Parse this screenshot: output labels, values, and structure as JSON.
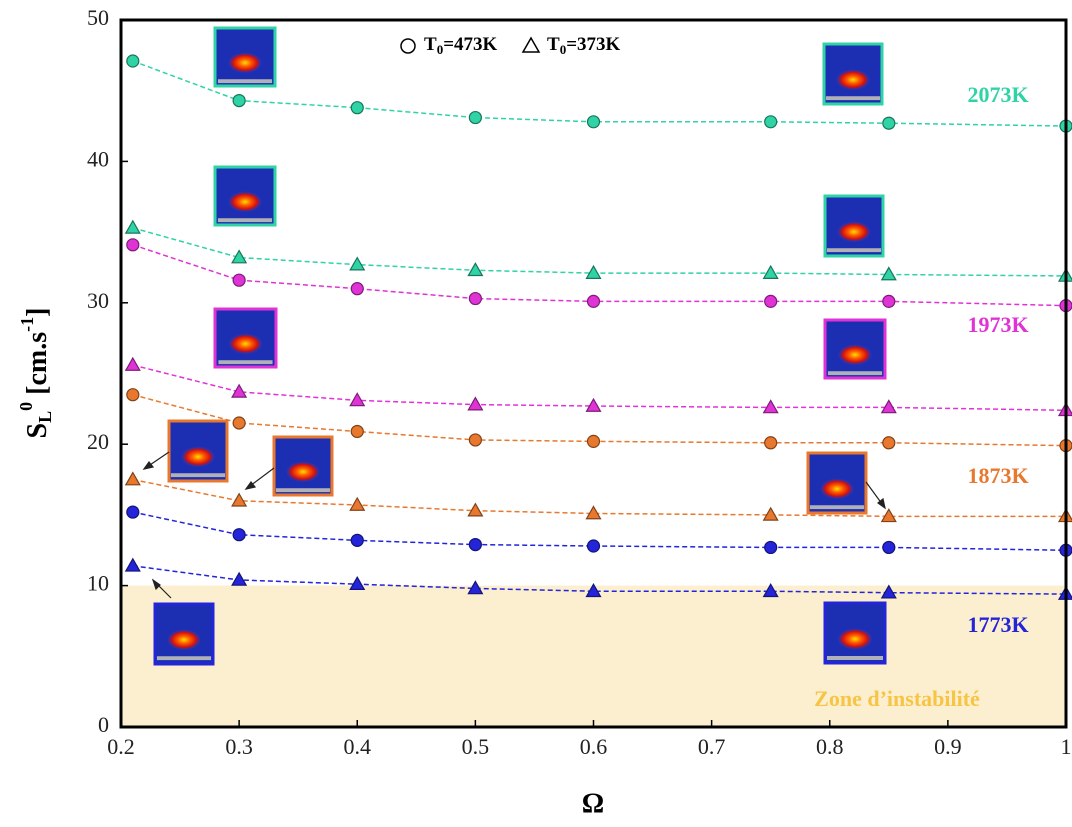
{
  "chart_data": {
    "type": "line",
    "x_label": "Ω",
    "y_label": [
      "S",
      "L",
      "0",
      " [cm.s",
      "-1",
      "]"
    ],
    "x": [
      0.21,
      0.3,
      0.4,
      0.5,
      0.6,
      0.75,
      0.85,
      1
    ],
    "xlim": [
      0.2,
      1
    ],
    "xticks": [
      0.2,
      0.3,
      0.4,
      0.5,
      0.6,
      0.7,
      0.8,
      0.9,
      1
    ],
    "ylim": [
      0,
      50
    ],
    "yticks": [
      0,
      10,
      20,
      30,
      40,
      50
    ],
    "legend": [
      {
        "marker": "circle",
        "label": [
          "T",
          "0",
          "=473K"
        ]
      },
      {
        "marker": "triangle",
        "label": [
          "T",
          "0",
          "=373K"
        ]
      }
    ],
    "groups": [
      {
        "label": "2073K",
        "color": "#2fd3a5",
        "series": [
          {
            "marker": "circle",
            "values": [
              47.1,
              44.3,
              43.8,
              43.1,
              42.8,
              42.8,
              42.7,
              42.5
            ]
          },
          {
            "marker": "triangle",
            "values": [
              35.3,
              33.2,
              32.7,
              32.3,
              32.1,
              32.1,
              32.0,
              31.9
            ]
          }
        ]
      },
      {
        "label": "1973K",
        "color": "#e033d6",
        "series": [
          {
            "marker": "circle",
            "values": [
              34.1,
              31.6,
              31.0,
              30.3,
              30.1,
              30.1,
              30.1,
              29.8
            ]
          },
          {
            "marker": "triangle",
            "values": [
              25.6,
              23.7,
              23.1,
              22.8,
              22.7,
              22.6,
              22.6,
              22.4
            ]
          }
        ]
      },
      {
        "label": "1873K",
        "color": "#e8782e",
        "series": [
          {
            "marker": "circle",
            "values": [
              23.5,
              21.5,
              20.9,
              20.3,
              20.2,
              20.1,
              20.1,
              19.9
            ]
          },
          {
            "marker": "triangle",
            "values": [
              17.5,
              16.0,
              15.7,
              15.3,
              15.1,
              15.0,
              14.9,
              14.9
            ]
          }
        ]
      },
      {
        "label": "1773K",
        "color": "#2424d8",
        "series": [
          {
            "marker": "circle",
            "values": [
              15.2,
              13.6,
              13.2,
              12.9,
              12.8,
              12.7,
              12.7,
              12.5
            ]
          },
          {
            "marker": "triangle",
            "values": [
              11.4,
              10.4,
              10.1,
              9.8,
              9.6,
              9.6,
              9.5,
              9.4
            ]
          }
        ]
      }
    ],
    "zone": {
      "label": "Zone d’instabilité",
      "range": [
        0,
        10
      ],
      "color": "#fcefcf",
      "text_color": "#f7c444"
    }
  }
}
